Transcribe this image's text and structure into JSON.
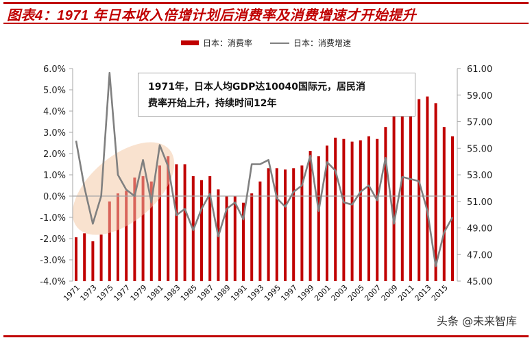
{
  "title": "图表4：1971 年日本收入倍增计划后消费率及消费增速才开始提升",
  "legend": {
    "bar_label": "日本：消费率",
    "line_label": "日本：消费增速"
  },
  "annotation": {
    "line1": "1971年，日本人均GDP达10040国际元，居民消",
    "line2": "费率开始上升，持续时间12年"
  },
  "watermark": "头条 @未来智库",
  "colors": {
    "title": "#c00000",
    "bar": "#c00000",
    "line": "#808080",
    "highlight": "#f8ddc8"
  },
  "chart_data": {
    "type": "bar+line",
    "title": "1971 年日本收入倍增计划后消费率及消费增速才开始提升",
    "xlabel": "",
    "left_axis": {
      "label": "消费增速",
      "ylim": [
        -4.0,
        6.0
      ],
      "ticks": [
        "6.0%",
        "5.0%",
        "4.0%",
        "3.0%",
        "2.0%",
        "1.0%",
        "0.0%",
        "-1.0%",
        "-2.0%",
        "-3.0%",
        "-4.0%"
      ]
    },
    "right_axis": {
      "label": "消费率",
      "ylim": [
        45,
        61
      ],
      "ticks": [
        "61.00",
        "59.00",
        "57.00",
        "55.00",
        "53.00",
        "51.00",
        "49.00",
        "47.00",
        "45.00"
      ]
    },
    "x_tick_labels": [
      "1971",
      "1973",
      "1975",
      "1977",
      "1979",
      "1981",
      "1983",
      "1985",
      "1987",
      "1989",
      "1991",
      "1993",
      "1995",
      "1997",
      "1999",
      "2001",
      "2003",
      "2005",
      "2007",
      "2009",
      "2011",
      "2013",
      "2015"
    ],
    "categories": [
      1971,
      1972,
      1973,
      1974,
      1975,
      1976,
      1977,
      1978,
      1979,
      1980,
      1981,
      1982,
      1983,
      1984,
      1985,
      1986,
      1987,
      1988,
      1989,
      1990,
      1991,
      1992,
      1993,
      1994,
      1995,
      1996,
      1997,
      1998,
      1999,
      2000,
      2001,
      2002,
      2003,
      2004,
      2005,
      2006,
      2007,
      2008,
      2009,
      2010,
      2011,
      2012,
      2013,
      2014,
      2015,
      2016
    ],
    "series": [
      {
        "name": "日本：消费率",
        "type": "bar",
        "axis": "right",
        "values": [
          48.3,
          48.6,
          48.0,
          48.5,
          51.0,
          51.6,
          51.8,
          52.8,
          52.9,
          52.5,
          53.7,
          54.4,
          53.8,
          53.8,
          52.9,
          52.6,
          52.9,
          51.9,
          51.4,
          51.4,
          50.9,
          51.6,
          52.5,
          53.5,
          53.5,
          53.4,
          53.5,
          53.7,
          54.8,
          54.4,
          55.2,
          55.8,
          55.7,
          55.5,
          55.6,
          55.9,
          55.7,
          56.6,
          58.5,
          57.8,
          58.3,
          58.7,
          58.9,
          58.4,
          56.6,
          55.9
        ]
      },
      {
        "name": "日本：消费增速",
        "type": "line",
        "axis": "left",
        "values": [
          2.6,
          0.4,
          -1.3,
          0.0,
          5.8,
          1.0,
          0.3,
          0.0,
          1.7,
          -0.3,
          2.4,
          1.4,
          -0.9,
          -0.6,
          -1.6,
          -0.6,
          0.1,
          -1.9,
          -0.6,
          -0.3,
          -1.1,
          1.5,
          1.5,
          1.7,
          -0.1,
          -0.5,
          0.2,
          0.5,
          1.9,
          -0.7,
          1.6,
          1.2,
          -0.3,
          -0.4,
          0.2,
          0.5,
          -0.2,
          1.8,
          -1.3,
          0.9,
          0.8,
          0.7,
          -0.7,
          -3.3,
          -1.7,
          -1.0
        ]
      }
    ],
    "grid": false,
    "legend_position": "top"
  }
}
